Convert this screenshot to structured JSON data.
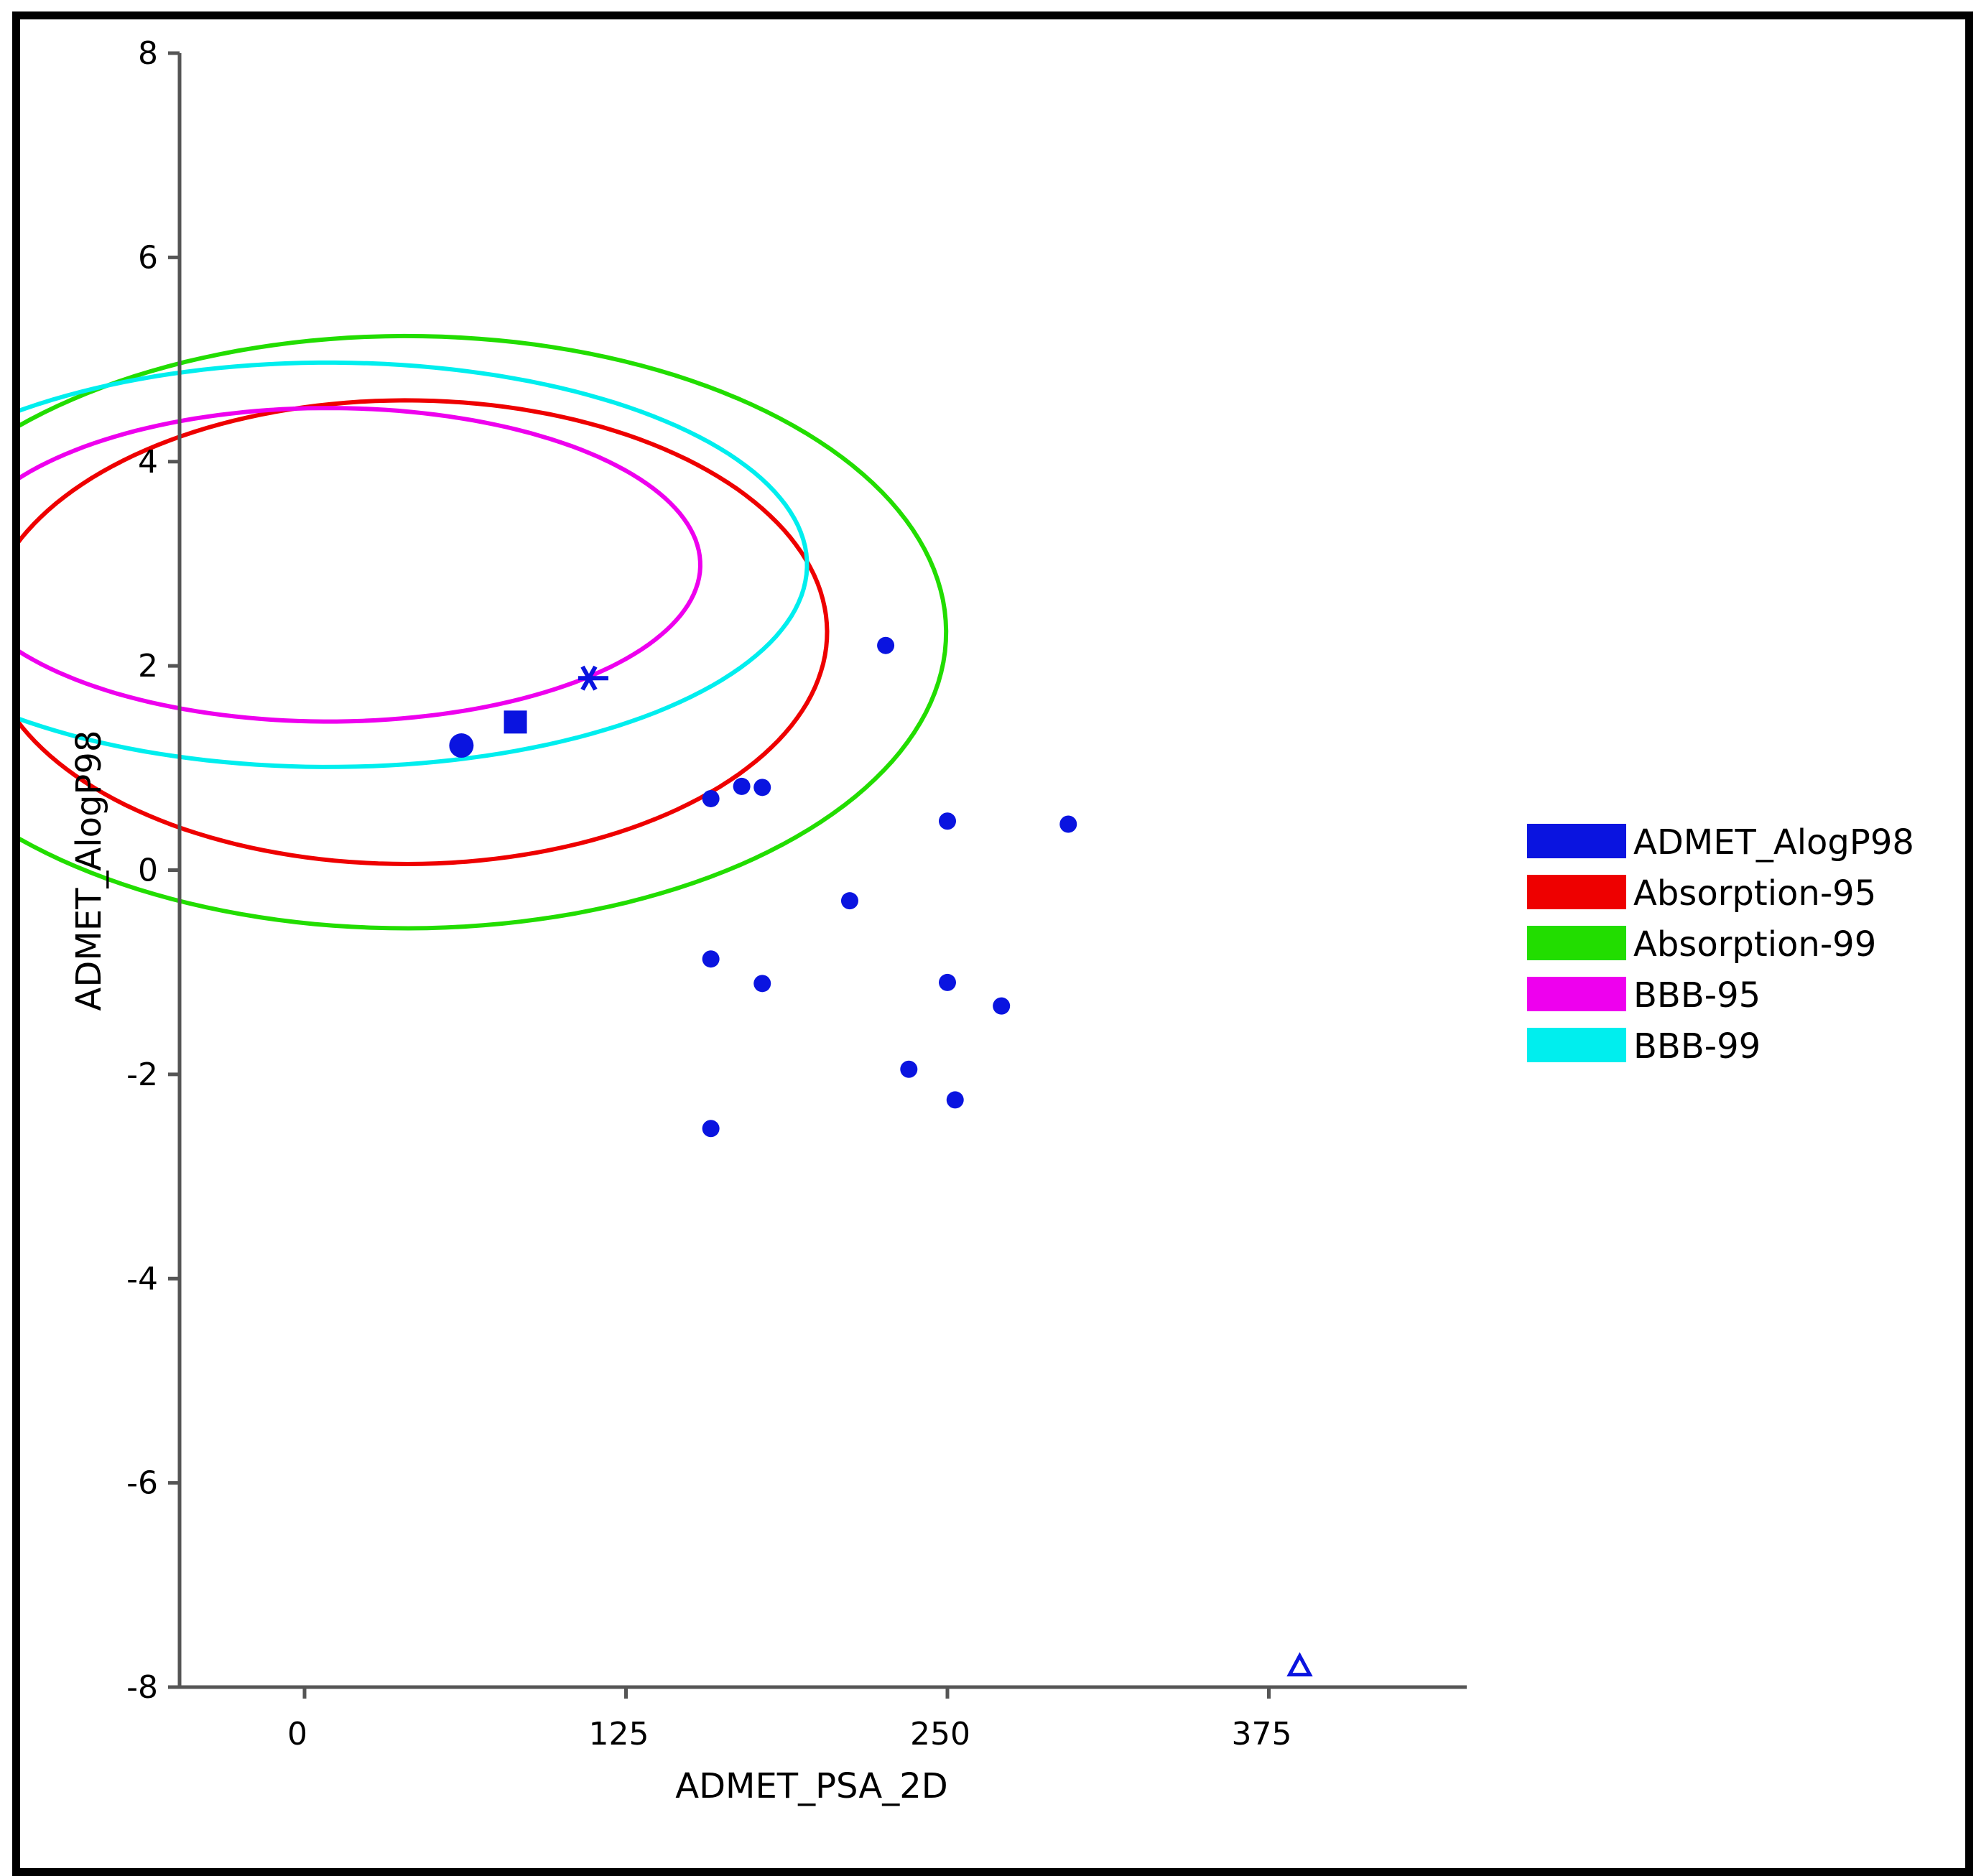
{
  "chart_data": {
    "type": "scatter",
    "title": "",
    "xlabel": "ADMET_PSA_2D",
    "ylabel": "ADMET_AlogP98",
    "xlim": [
      -47,
      450
    ],
    "ylim": [
      -8,
      8
    ],
    "xticks": [
      0,
      125,
      250,
      375
    ],
    "yticks": [
      8,
      6,
      4,
      2,
      0,
      -2,
      -4,
      -6,
      -8
    ],
    "grid": false,
    "legend_position": "right",
    "colors": {
      "points": "#0a14e0",
      "Absorption-95": "#ee0000",
      "Absorption-99": "#22dd00",
      "BBB-95": "#ee00ee",
      "BBB-99": "#00eeee"
    },
    "legend": [
      {
        "label": "ADMET_AlogP98",
        "color": "#0a14e0"
      },
      {
        "label": "Absorption-95",
        "color": "#ee0000"
      },
      {
        "label": "Absorption-99",
        "color": "#22dd00"
      },
      {
        "label": "BBB-95",
        "color": "#ee00ee"
      },
      {
        "label": "BBB-99",
        "color": "#00eeee"
      }
    ],
    "series": [
      {
        "name": "ADMET_AlogP98",
        "points": [
          {
            "x": 61,
            "y": 1.22,
            "marker": "circle-large"
          },
          {
            "x": 82,
            "y": 1.45,
            "marker": "square"
          },
          {
            "x": 112,
            "y": 1.88,
            "marker": "star"
          },
          {
            "x": 158,
            "y": 0.7,
            "marker": "dot"
          },
          {
            "x": 170,
            "y": 0.82,
            "marker": "dot"
          },
          {
            "x": 178,
            "y": 0.81,
            "marker": "dot"
          },
          {
            "x": 226,
            "y": 2.2,
            "marker": "dot"
          },
          {
            "x": 250,
            "y": 0.48,
            "marker": "dot"
          },
          {
            "x": 297,
            "y": 0.45,
            "marker": "dot"
          },
          {
            "x": 212,
            "y": -0.3,
            "marker": "dot"
          },
          {
            "x": 158,
            "y": -0.87,
            "marker": "dot"
          },
          {
            "x": 178,
            "y": -1.11,
            "marker": "dot"
          },
          {
            "x": 250,
            "y": -1.1,
            "marker": "dot"
          },
          {
            "x": 271,
            "y": -1.33,
            "marker": "dot"
          },
          {
            "x": 235,
            "y": -1.95,
            "marker": "dot"
          },
          {
            "x": 253,
            "y": -2.25,
            "marker": "dot"
          },
          {
            "x": 158,
            "y": -2.53,
            "marker": "dot"
          },
          {
            "x": 387,
            "y": -7.8,
            "marker": "triangle-open"
          }
        ]
      }
    ],
    "ellipses": [
      {
        "name": "Absorption-99",
        "cx": 39.5,
        "cy": 2.33,
        "a": 210,
        "b": 2.9,
        "angle": -0.45,
        "color": "#22dd00"
      },
      {
        "name": "Absorption-95",
        "cx": 39.5,
        "cy": 2.33,
        "a": 163.7,
        "b": 2.27,
        "angle": -0.45,
        "color": "#ee0000"
      },
      {
        "name": "BBB-99",
        "cx": 9.4,
        "cy": 2.99,
        "a": 186,
        "b": 1.98,
        "angle": -0.502,
        "color": "#00eeee"
      },
      {
        "name": "BBB-95",
        "cx": 9.4,
        "cy": 2.99,
        "a": 144.5,
        "b": 1.535,
        "angle": -0.502,
        "color": "#ee00ee"
      }
    ]
  }
}
